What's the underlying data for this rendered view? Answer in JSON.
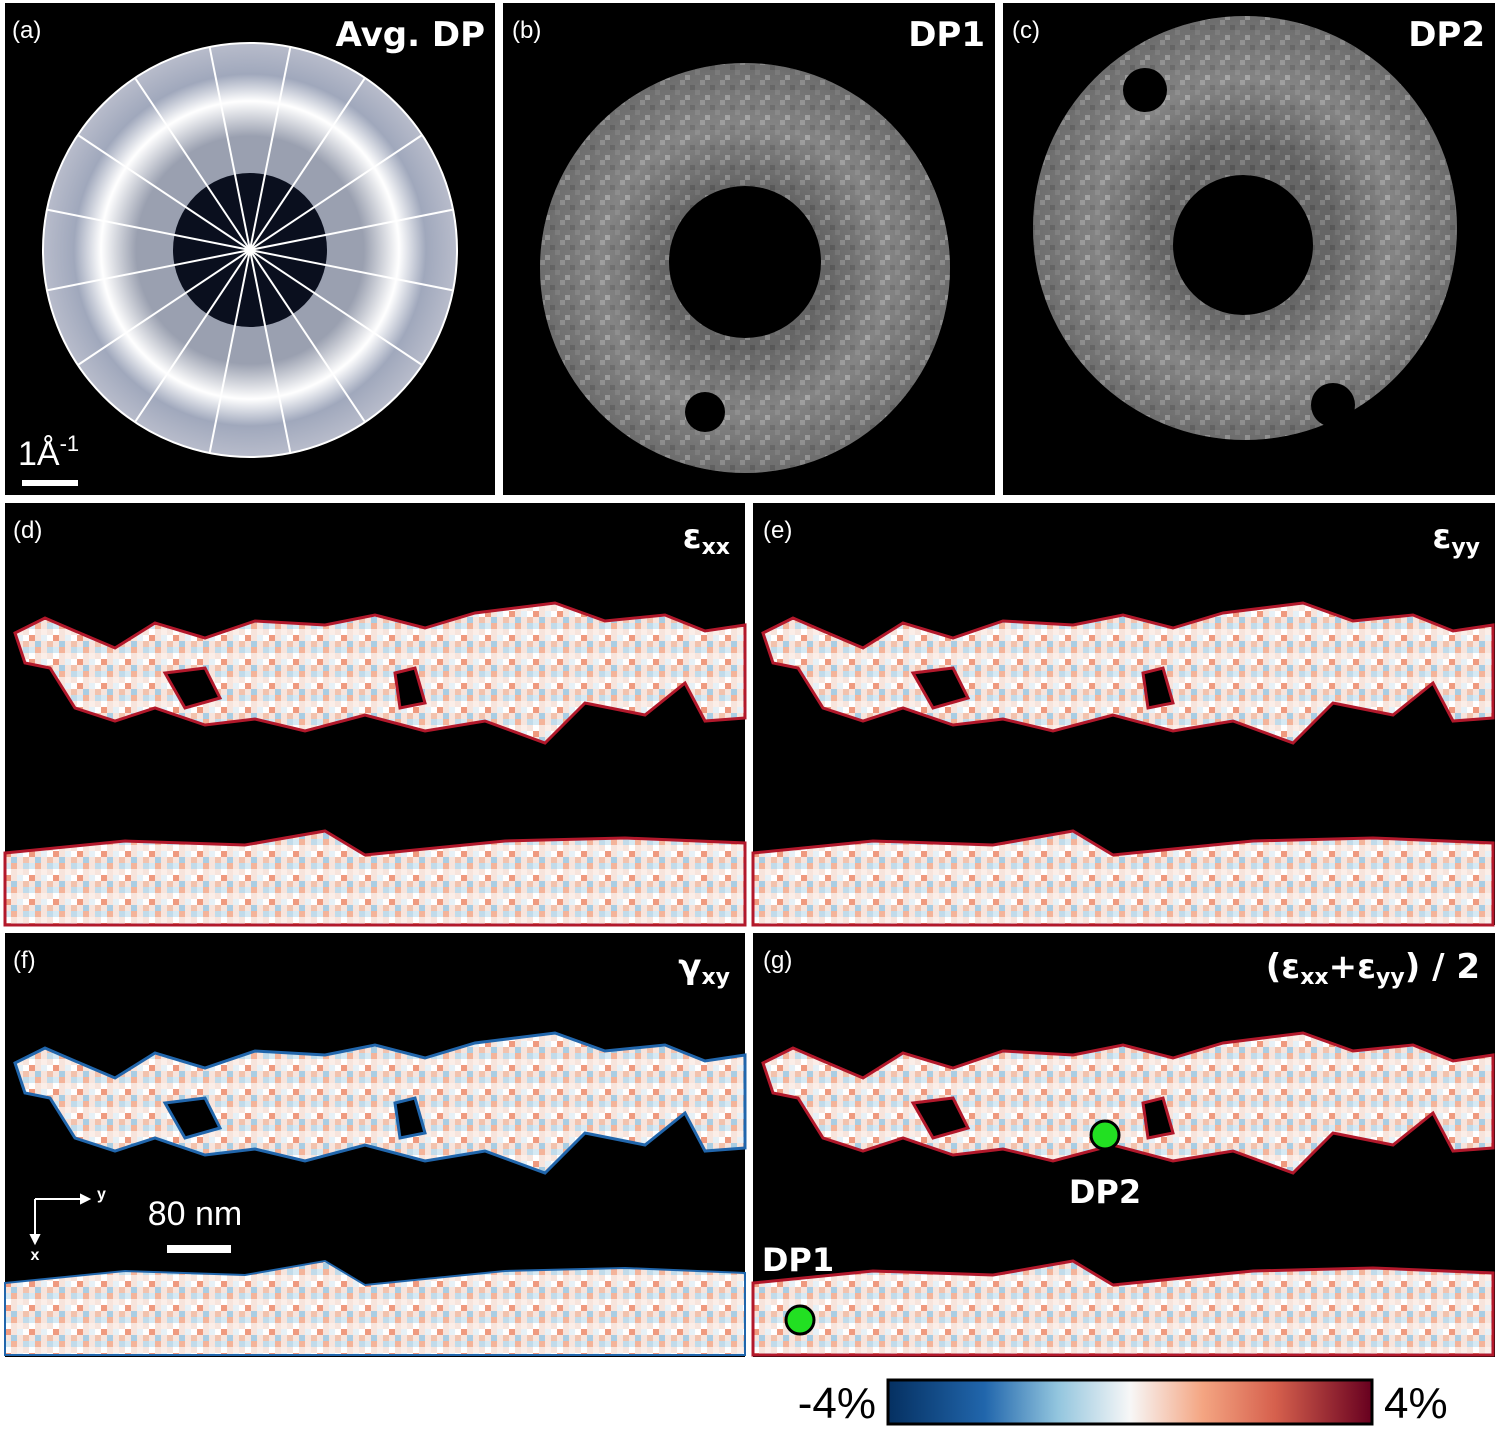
{
  "panels": {
    "a": {
      "label": "(a)",
      "title": "Avg. DP",
      "scale_bar": {
        "base": "1Å",
        "exponent": "-1"
      }
    },
    "b": {
      "label": "(b)",
      "title": "DP1"
    },
    "c": {
      "label": "(c)",
      "title": "DP2"
    },
    "d": {
      "label": "(d)",
      "title": {
        "symbol": "ε",
        "subscript": "xx"
      }
    },
    "e": {
      "label": "(e)",
      "title": {
        "symbol": "ε",
        "subscript": "yy"
      }
    },
    "f": {
      "label": "(f)",
      "title": {
        "symbol": "γ",
        "subscript": "xy"
      },
      "axes": {
        "y": "y",
        "x": "x"
      },
      "scale_bar": "80 nm"
    },
    "g": {
      "label": "(g)",
      "title": [
        "(ε",
        "xx",
        "+ε",
        "yy",
        ") / 2"
      ],
      "markers": [
        "DP2",
        "DP1"
      ]
    }
  },
  "colorbar": {
    "min_label": "-4%",
    "max_label": "4%"
  }
}
